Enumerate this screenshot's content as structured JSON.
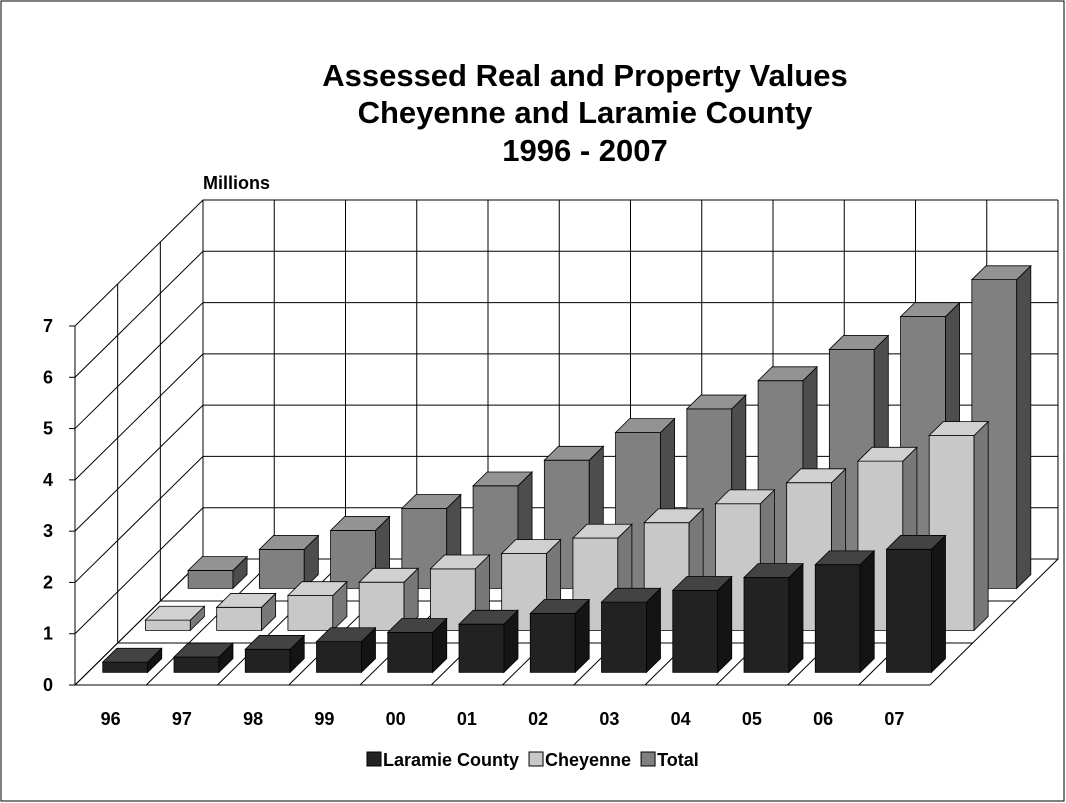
{
  "chart_data": {
    "type": "bar3d",
    "title": [
      "Assessed Real and Property Values",
      "Cheyenne and Laramie County",
      "1996 - 2007"
    ],
    "y_label": "Millions",
    "categories": [
      "96",
      "97",
      "98",
      "99",
      "00",
      "01",
      "02",
      "03",
      "04",
      "05",
      "06",
      "07"
    ],
    "series": [
      {
        "name": "Laramie County",
        "color": "#222222",
        "values": [
          0.2,
          0.3,
          0.45,
          0.6,
          0.78,
          0.94,
          1.15,
          1.37,
          1.6,
          1.85,
          2.1,
          2.4
        ]
      },
      {
        "name": "Cheyenne",
        "color": "#c8c8c8",
        "values": [
          0.2,
          0.45,
          0.68,
          0.94,
          1.2,
          1.5,
          1.8,
          2.1,
          2.47,
          2.88,
          3.3,
          3.8
        ]
      },
      {
        "name": "Total",
        "color": "#808080",
        "values": [
          0.35,
          0.76,
          1.13,
          1.56,
          2.0,
          2.5,
          3.04,
          3.5,
          4.05,
          4.66,
          5.3,
          6.02
        ]
      }
    ],
    "ylim": [
      0,
      7
    ],
    "yticks": [
      0,
      1,
      2,
      3,
      4,
      5,
      6,
      7
    ],
    "grid": true,
    "legend": "bottom"
  }
}
